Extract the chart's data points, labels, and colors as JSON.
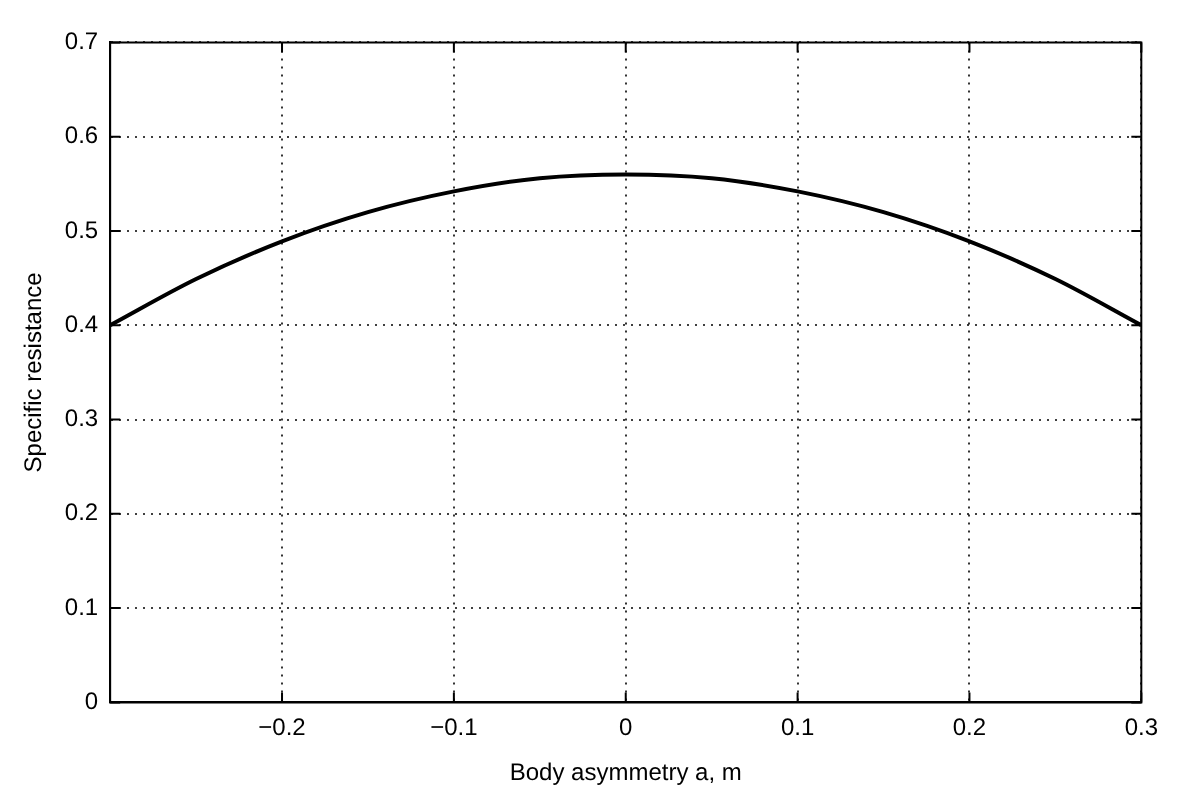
{
  "chart_data": {
    "type": "line",
    "xlabel": "Body asymmetry a, m",
    "ylabel": "Specific resistance",
    "x": [
      -0.3,
      -0.25,
      -0.2,
      -0.15,
      -0.1,
      -0.05,
      0,
      0.05,
      0.1,
      0.15,
      0.2,
      0.25,
      0.3
    ],
    "series": [
      {
        "color": "#000000",
        "values": [
          0.4,
          0.449,
          0.489,
          0.52,
          0.542,
          0.556,
          0.56,
          0.556,
          0.542,
          0.52,
          0.489,
          0.449,
          0.4
        ]
      }
    ],
    "xlim": [
      -0.3,
      0.3
    ],
    "xticks": [
      -0.2,
      -0.1,
      0,
      0.1,
      0.2,
      0.3
    ],
    "ylim": [
      0,
      0.7
    ],
    "yticks": [
      0,
      0.1,
      0.2,
      0.3,
      0.4,
      0.5,
      0.6,
      0.7
    ],
    "grid": true,
    "legend": false,
    "marker": "none",
    "line_style": "solid"
  }
}
